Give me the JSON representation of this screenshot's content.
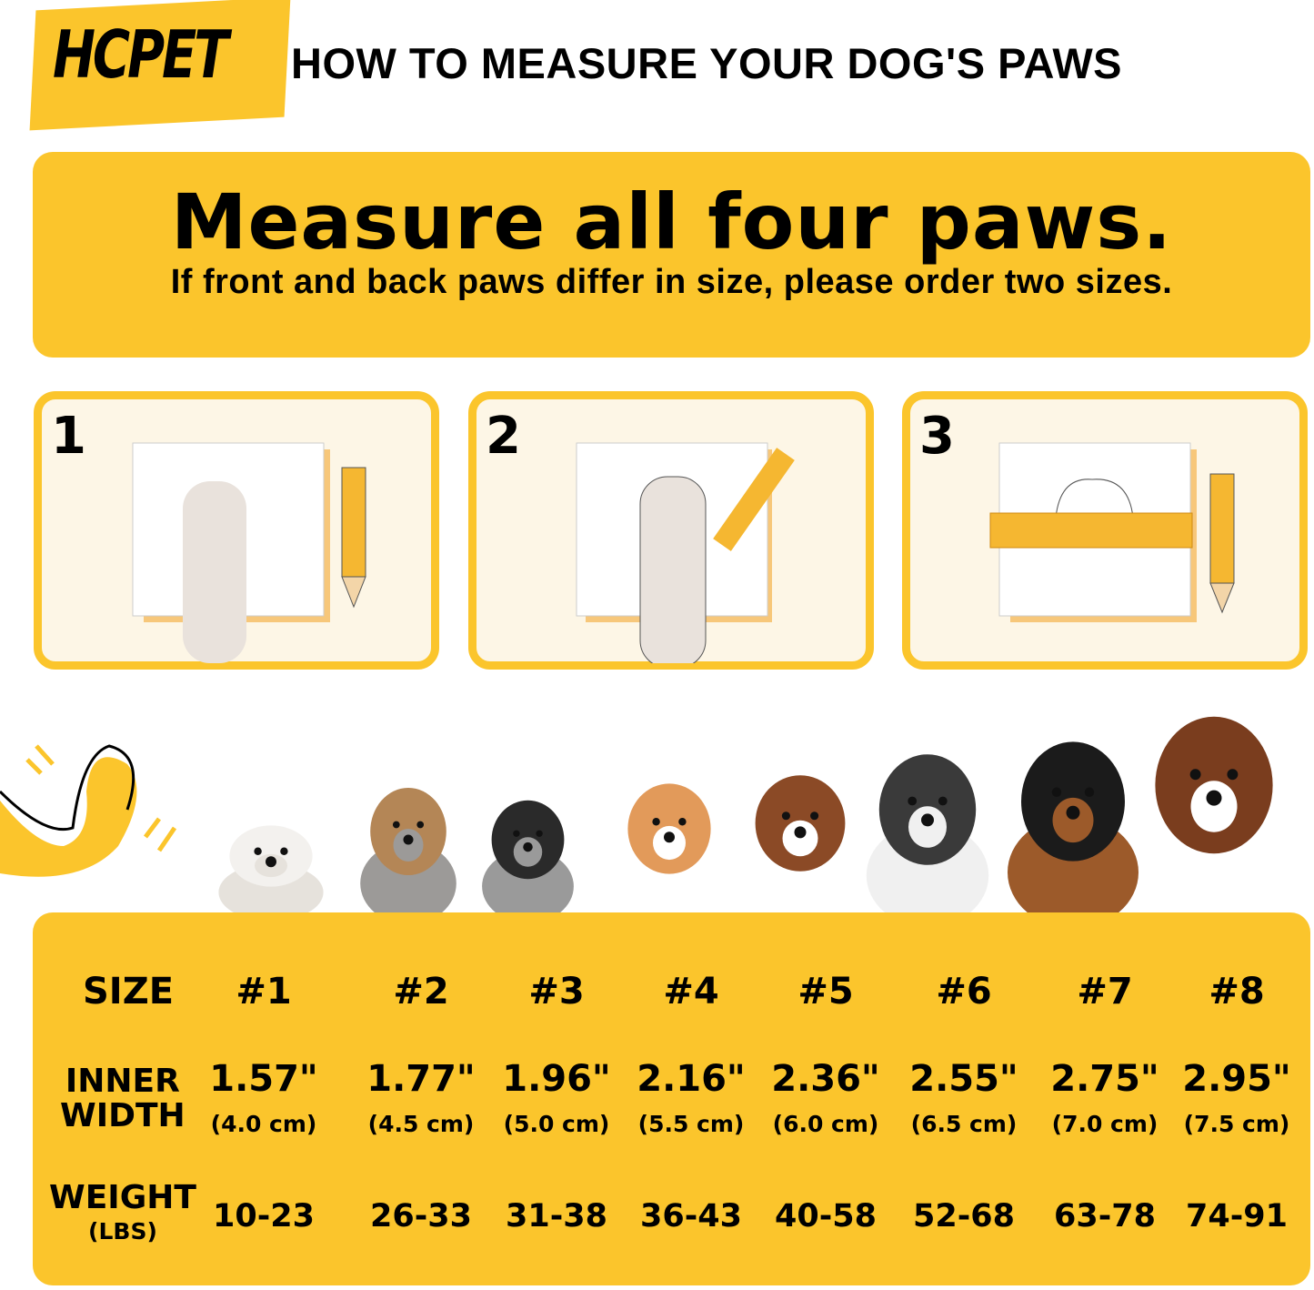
{
  "header": {
    "logo": "HCPET",
    "title": "HOW TO MEASURE YOUR DOG'S PAWS"
  },
  "banner": {
    "headline": "Measure all four paws.",
    "subline": "If front and back paws differ in size, please order two sizes."
  },
  "steps": [
    {
      "number": "1"
    },
    {
      "number": "2"
    },
    {
      "number": "3"
    }
  ],
  "colors": {
    "accent": "#fbc52c",
    "panel": "#fdf6e6"
  },
  "size_chart": {
    "size_label": "SIZE",
    "width_label_1": "INNER",
    "width_label_2": "WIDTH",
    "weight_label": "WEIGHT",
    "weight_unit": "(LBS)",
    "sizes": [
      {
        "size": "#1",
        "inches": "1.57\"",
        "cm": "(4.0 cm)",
        "weight": "10-23"
      },
      {
        "size": "#2",
        "inches": "1.77\"",
        "cm": "(4.5 cm)",
        "weight": "26-33"
      },
      {
        "size": "#3",
        "inches": "1.96\"",
        "cm": "(5.0 cm)",
        "weight": "31-38"
      },
      {
        "size": "#4",
        "inches": "2.16\"",
        "cm": "(5.5 cm)",
        "weight": "36-43"
      },
      {
        "size": "#5",
        "inches": "2.36\"",
        "cm": "(6.0 cm)",
        "weight": "40-58"
      },
      {
        "size": "#6",
        "inches": "2.55\"",
        "cm": "(6.5 cm)",
        "weight": "52-68"
      },
      {
        "size": "#7",
        "inches": "2.75\"",
        "cm": "(7.0 cm)",
        "weight": "63-78"
      },
      {
        "size": "#8",
        "inches": "2.95\"",
        "cm": "(7.5 cm)",
        "weight": "74-91"
      }
    ]
  }
}
